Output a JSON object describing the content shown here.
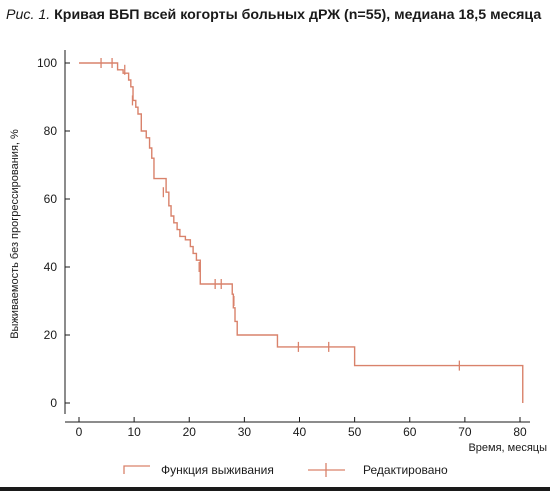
{
  "caption": {
    "figure_label": "Рис. 1.",
    "text": "Кривая ВБП всей когорты больных дРЖ (n=55), медиана 18,5 месяца"
  },
  "chart_data": {
    "type": "line",
    "step": true,
    "xlabel": "Время, месяцы",
    "ylabel": "Выживаемость без прогрессирования, %",
    "xlim": [
      0,
      80
    ],
    "ylim": [
      0,
      100
    ],
    "xticks": [
      0,
      10,
      20,
      30,
      40,
      50,
      60,
      70,
      80
    ],
    "yticks": [
      0,
      20,
      40,
      60,
      80,
      100
    ],
    "grid": false,
    "legend_position": "bottom",
    "colors": {
      "curve": "#d9826b",
      "axis": "#1a1a1a"
    },
    "series": [
      {
        "name": "Функция выживания",
        "x": [
          0,
          7,
          8,
          9,
          9.4,
          9.8,
          10.3,
          10.7,
          11.3,
          12.2,
          12.8,
          13.2,
          13.6,
          15.8,
          16.3,
          16.7,
          17.2,
          17.8,
          18.3,
          19.3,
          20.2,
          20.7,
          21.3,
          22.0,
          27.8,
          28.0,
          28.3,
          28.7,
          36.0,
          50.0,
          80.5
        ],
        "y": [
          100,
          98,
          97,
          95,
          93,
          89,
          87,
          85,
          80,
          78,
          75,
          72,
          66,
          62,
          58,
          55,
          53,
          51,
          49,
          48,
          46,
          44,
          42,
          35,
          32,
          28,
          24,
          20,
          16.5,
          11,
          0
        ],
        "censored": {
          "x": [
            4,
            6,
            8.3,
            9.7,
            15.3,
            21.8,
            24.7,
            25.8,
            28.1,
            39.8,
            45.3,
            69.0
          ],
          "y": [
            100,
            100,
            98,
            89,
            62,
            40,
            35,
            35,
            30,
            16.5,
            16.5,
            11
          ]
        }
      }
    ],
    "legend": [
      {
        "label": "Функция выживания",
        "marker": "step"
      },
      {
        "label": "Редактировано",
        "marker": "censor-tick"
      }
    ]
  }
}
